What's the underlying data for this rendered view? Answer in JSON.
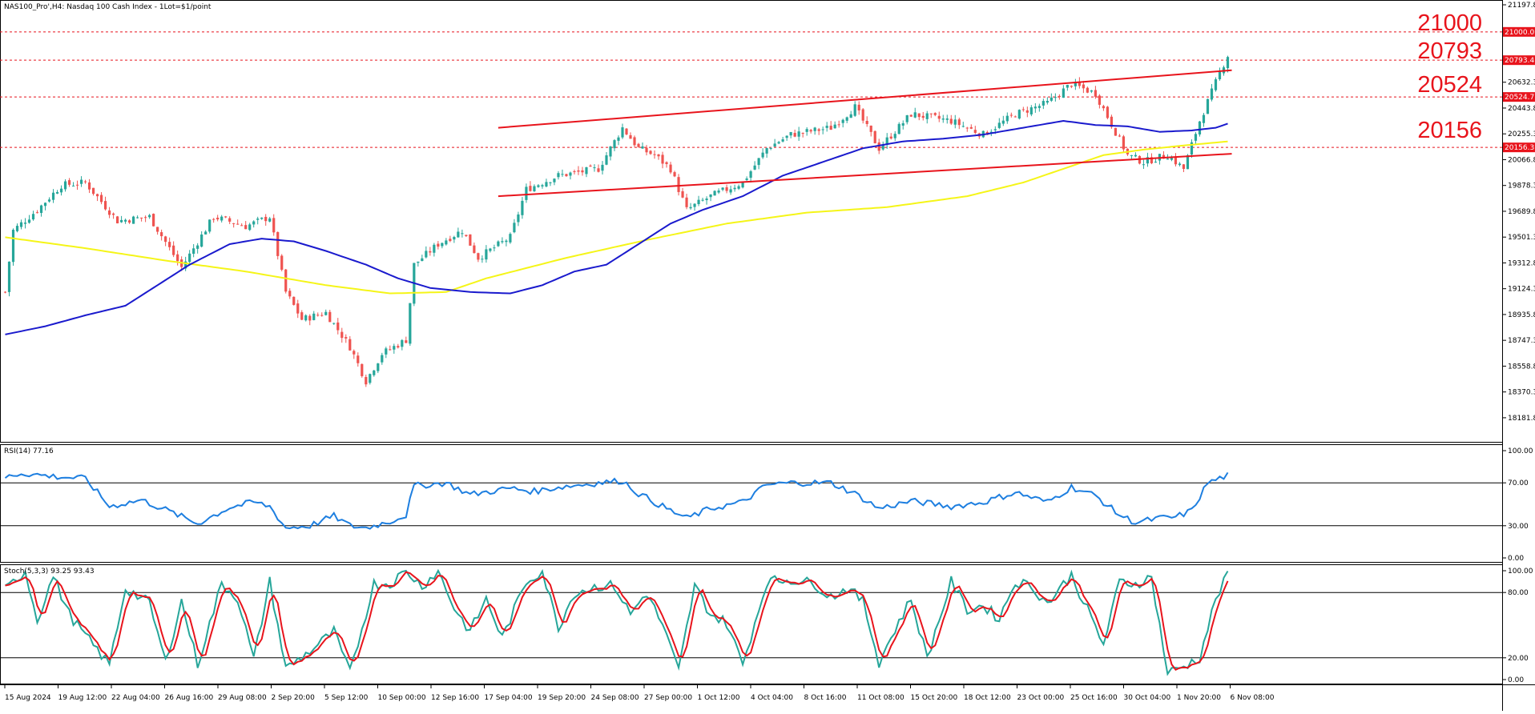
{
  "window_title": "NAS100_Pro',H4: Nasdaq 100 Cash Index - 1Lot=$1/point",
  "colors": {
    "bull": "#26a69a",
    "bear": "#ef5350",
    "ma_fast": "#1a1acd",
    "ma_slow": "#f5f518",
    "channel": "#e8141c",
    "rsi": "#1e7fe0",
    "stoch_main": "#26a69a",
    "stoch_signal": "#e8141c",
    "level_tag": "#e8141c"
  },
  "chart_data": [
    {
      "type": "line",
      "name": "price",
      "title": "NAS100_Pro',H4: Nasdaq 100 Cash Index - 1Lot=$1/point",
      "ylim": [
        18000,
        21197.8
      ],
      "y_ticks": [
        "21197.8",
        "21000.0",
        "20793.4",
        "20632.3",
        "20524.7",
        "20443.8",
        "20255.3",
        "20156.3",
        "20066.8",
        "19878.3",
        "19689.8",
        "19501.3",
        "19312.8",
        "19124.3",
        "18935.8",
        "18747.3",
        "18558.8",
        "18370.3",
        "18181.8"
      ],
      "x_ticks": [
        "15 Aug 2024",
        "19 Aug 12:00",
        "22 Aug 04:00",
        "26 Aug 16:00",
        "29 Aug 08:00",
        "2 Sep 20:00",
        "5 Sep 12:00",
        "10 Sep 00:00",
        "12 Sep 16:00",
        "17 Sep 04:00",
        "19 Sep 20:00",
        "24 Sep 08:00",
        "27 Sep 00:00",
        "1 Oct 12:00",
        "4 Oct 04:00",
        "8 Oct 16:00",
        "11 Oct 08:00",
        "15 Oct 20:00",
        "18 Oct 12:00",
        "23 Oct 00:00",
        "25 Oct 16:00",
        "30 Oct 04:00",
        "1 Nov 20:00",
        "6 Nov 08:00"
      ],
      "levels": [
        {
          "label": "21000",
          "tag": "21000.0",
          "value": 21000.0
        },
        {
          "label": "20793",
          "tag": "20793.4",
          "value": 20793.4
        },
        {
          "label": "20524",
          "tag": "20524.7",
          "value": 20524.7
        },
        {
          "label": "20156",
          "tag": "20156.3",
          "value": 20156.3
        }
      ],
      "close_anchors": [
        [
          0,
          19100
        ],
        [
          2,
          19550
        ],
        [
          8,
          19700
        ],
        [
          14,
          19880
        ],
        [
          20,
          19900
        ],
        [
          28,
          19620
        ],
        [
          36,
          19650
        ],
        [
          44,
          19280
        ],
        [
          52,
          19650
        ],
        [
          60,
          19580
        ],
        [
          66,
          19650
        ],
        [
          70,
          19100
        ],
        [
          74,
          18900
        ],
        [
          80,
          18950
        ],
        [
          86,
          18700
        ],
        [
          90,
          18450
        ],
        [
          94,
          18650
        ],
        [
          100,
          18750
        ],
        [
          102,
          19300
        ],
        [
          108,
          19450
        ],
        [
          114,
          19550
        ],
        [
          118,
          19350
        ],
        [
          126,
          19500
        ],
        [
          130,
          19850
        ],
        [
          138,
          19950
        ],
        [
          148,
          20000
        ],
        [
          154,
          20300
        ],
        [
          158,
          20150
        ],
        [
          162,
          20100
        ],
        [
          166,
          20000
        ],
        [
          170,
          19700
        ],
        [
          176,
          19800
        ],
        [
          184,
          19900
        ],
        [
          190,
          20150
        ],
        [
          196,
          20250
        ],
        [
          206,
          20300
        ],
        [
          212,
          20450
        ],
        [
          218,
          20150
        ],
        [
          226,
          20400
        ],
        [
          236,
          20350
        ],
        [
          244,
          20250
        ],
        [
          252,
          20400
        ],
        [
          260,
          20480
        ],
        [
          266,
          20620
        ],
        [
          272,
          20550
        ],
        [
          280,
          20100
        ],
        [
          284,
          20050
        ],
        [
          290,
          20100
        ],
        [
          294,
          20000
        ],
        [
          298,
          20350
        ],
        [
          303,
          20700
        ],
        [
          305,
          20830
        ]
      ],
      "ma_fast_anchors": [
        [
          0,
          18790
        ],
        [
          10,
          18850
        ],
        [
          20,
          18930
        ],
        [
          30,
          19000
        ],
        [
          38,
          19150
        ],
        [
          46,
          19300
        ],
        [
          56,
          19450
        ],
        [
          64,
          19490
        ],
        [
          72,
          19470
        ],
        [
          80,
          19400
        ],
        [
          90,
          19300
        ],
        [
          98,
          19200
        ],
        [
          106,
          19130
        ],
        [
          116,
          19100
        ],
        [
          126,
          19090
        ],
        [
          134,
          19150
        ],
        [
          142,
          19250
        ],
        [
          150,
          19300
        ],
        [
          158,
          19450
        ],
        [
          166,
          19600
        ],
        [
          174,
          19700
        ],
        [
          184,
          19800
        ],
        [
          194,
          19950
        ],
        [
          204,
          20050
        ],
        [
          214,
          20150
        ],
        [
          224,
          20200
        ],
        [
          234,
          20220
        ],
        [
          244,
          20250
        ],
        [
          254,
          20300
        ],
        [
          264,
          20350
        ],
        [
          272,
          20320
        ],
        [
          280,
          20310
        ],
        [
          288,
          20270
        ],
        [
          296,
          20280
        ],
        [
          302,
          20300
        ],
        [
          305,
          20330
        ]
      ],
      "ma_slow_anchors": [
        [
          0,
          19500
        ],
        [
          20,
          19420
        ],
        [
          40,
          19330
        ],
        [
          60,
          19250
        ],
        [
          80,
          19150
        ],
        [
          96,
          19090
        ],
        [
          110,
          19100
        ],
        [
          120,
          19200
        ],
        [
          140,
          19350
        ],
        [
          160,
          19480
        ],
        [
          180,
          19600
        ],
        [
          200,
          19680
        ],
        [
          220,
          19720
        ],
        [
          240,
          19800
        ],
        [
          254,
          19900
        ],
        [
          264,
          20000
        ],
        [
          274,
          20100
        ],
        [
          284,
          20140
        ],
        [
          294,
          20170
        ],
        [
          305,
          20200
        ]
      ],
      "channel": {
        "upper": [
          [
            123,
            20300
          ],
          [
            306,
            20720
          ]
        ],
        "lower": [
          [
            123,
            19800
          ],
          [
            306,
            20110
          ]
        ]
      }
    },
    {
      "type": "line",
      "name": "RSI",
      "title": "RSI(14) 77.16",
      "ylim": [
        0,
        100
      ],
      "y_ticks": [
        "100.00",
        "70.00",
        "30.00",
        "0.00"
      ],
      "levels": [
        70,
        30
      ],
      "anchors": [
        [
          0,
          75
        ],
        [
          4,
          79
        ],
        [
          12,
          76
        ],
        [
          20,
          74
        ],
        [
          26,
          48
        ],
        [
          34,
          54
        ],
        [
          40,
          45
        ],
        [
          48,
          32
        ],
        [
          56,
          47
        ],
        [
          62,
          52
        ],
        [
          66,
          48
        ],
        [
          70,
          28
        ],
        [
          76,
          30
        ],
        [
          82,
          39
        ],
        [
          86,
          30
        ],
        [
          90,
          28
        ],
        [
          96,
          34
        ],
        [
          100,
          40
        ],
        [
          102,
          67
        ],
        [
          110,
          70
        ],
        [
          116,
          59
        ],
        [
          126,
          65
        ],
        [
          132,
          62
        ],
        [
          138,
          66
        ],
        [
          148,
          70
        ],
        [
          154,
          72
        ],
        [
          158,
          60
        ],
        [
          166,
          44
        ],
        [
          170,
          37
        ],
        [
          176,
          46
        ],
        [
          184,
          52
        ],
        [
          190,
          68
        ],
        [
          196,
          70
        ],
        [
          206,
          70
        ],
        [
          212,
          60
        ],
        [
          218,
          46
        ],
        [
          226,
          53
        ],
        [
          236,
          48
        ],
        [
          244,
          52
        ],
        [
          252,
          61
        ],
        [
          260,
          52
        ],
        [
          266,
          66
        ],
        [
          272,
          58
        ],
        [
          278,
          40
        ],
        [
          282,
          33
        ],
        [
          288,
          37
        ],
        [
          292,
          38
        ],
        [
          296,
          44
        ],
        [
          300,
          70
        ],
        [
          305,
          77
        ]
      ]
    },
    {
      "type": "line",
      "name": "Stochastic",
      "title": "Stoch(5,3,3) 93.25 93.43",
      "ylim": [
        0,
        100
      ],
      "y_ticks": [
        "100.00",
        "80.00",
        "20.00",
        "0.00"
      ],
      "levels": [
        80,
        20
      ],
      "series": [
        {
          "name": "%K",
          "value": 93.25
        },
        {
          "name": "%D",
          "value": 93.43
        }
      ],
      "k_anchors": [
        [
          0,
          82
        ],
        [
          5,
          100
        ],
        [
          8,
          55
        ],
        [
          12,
          95
        ],
        [
          16,
          60
        ],
        [
          20,
          40
        ],
        [
          26,
          14
        ],
        [
          30,
          84
        ],
        [
          36,
          70
        ],
        [
          40,
          16
        ],
        [
          44,
          72
        ],
        [
          48,
          14
        ],
        [
          54,
          88
        ],
        [
          58,
          75
        ],
        [
          62,
          18
        ],
        [
          66,
          90
        ],
        [
          70,
          10
        ],
        [
          76,
          26
        ],
        [
          82,
          44
        ],
        [
          86,
          6
        ],
        [
          92,
          88
        ],
        [
          96,
          88
        ],
        [
          100,
          100
        ],
        [
          104,
          86
        ],
        [
          108,
          100
        ],
        [
          112,
          66
        ],
        [
          116,
          44
        ],
        [
          120,
          74
        ],
        [
          124,
          38
        ],
        [
          130,
          90
        ],
        [
          134,
          100
        ],
        [
          138,
          48
        ],
        [
          142,
          80
        ],
        [
          148,
          86
        ],
        [
          152,
          86
        ],
        [
          156,
          60
        ],
        [
          160,
          80
        ],
        [
          164,
          50
        ],
        [
          168,
          8
        ],
        [
          172,
          86
        ],
        [
          176,
          60
        ],
        [
          180,
          52
        ],
        [
          184,
          14
        ],
        [
          190,
          90
        ],
        [
          196,
          92
        ],
        [
          202,
          88
        ],
        [
          206,
          76
        ],
        [
          210,
          84
        ],
        [
          214,
          72
        ],
        [
          218,
          16
        ],
        [
          222,
          46
        ],
        [
          226,
          74
        ],
        [
          230,
          20
        ],
        [
          236,
          90
        ],
        [
          240,
          64
        ],
        [
          244,
          68
        ],
        [
          248,
          56
        ],
        [
          252,
          90
        ],
        [
          256,
          86
        ],
        [
          260,
          70
        ],
        [
          266,
          96
        ],
        [
          270,
          64
        ],
        [
          274,
          32
        ],
        [
          278,
          90
        ],
        [
          282,
          88
        ],
        [
          286,
          94
        ],
        [
          290,
          6
        ],
        [
          294,
          12
        ],
        [
          298,
          20
        ],
        [
          302,
          74
        ],
        [
          305,
          96
        ]
      ]
    }
  ]
}
